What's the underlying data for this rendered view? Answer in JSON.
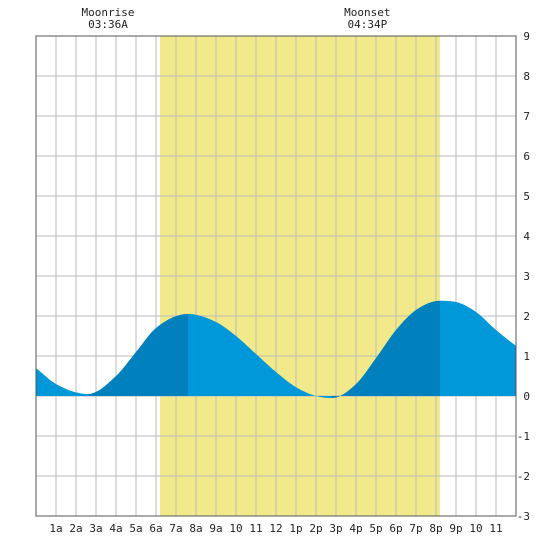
{
  "chart_data": {
    "type": "area",
    "annotations": [
      {
        "label": "Moonrise",
        "time_label": "03:36A",
        "hour": 3.6
      },
      {
        "label": "Moonset",
        "time_label": "04:34P",
        "hour": 16.567
      }
    ],
    "daylight": {
      "start_hour": 6.2,
      "end_hour": 20.2,
      "color": "#f2ea8a"
    },
    "x_range": [
      0,
      24
    ],
    "ylim": [
      -3,
      9
    ],
    "yticks": [
      -3,
      -2,
      -1,
      0,
      1,
      2,
      3,
      4,
      5,
      6,
      7,
      8,
      9
    ],
    "xticks": [
      {
        "hour": 1,
        "label": "1a"
      },
      {
        "hour": 2,
        "label": "2a"
      },
      {
        "hour": 3,
        "label": "3a"
      },
      {
        "hour": 4,
        "label": "4a"
      },
      {
        "hour": 5,
        "label": "5a"
      },
      {
        "hour": 6,
        "label": "6a"
      },
      {
        "hour": 7,
        "label": "7a"
      },
      {
        "hour": 8,
        "label": "8a"
      },
      {
        "hour": 9,
        "label": "9a"
      },
      {
        "hour": 10,
        "label": "10"
      },
      {
        "hour": 11,
        "label": "11"
      },
      {
        "hour": 12,
        "label": "12"
      },
      {
        "hour": 13,
        "label": "1p"
      },
      {
        "hour": 14,
        "label": "2p"
      },
      {
        "hour": 15,
        "label": "3p"
      },
      {
        "hour": 16,
        "label": "4p"
      },
      {
        "hour": 17,
        "label": "5p"
      },
      {
        "hour": 18,
        "label": "6p"
      },
      {
        "hour": 19,
        "label": "7p"
      },
      {
        "hour": 20,
        "label": "8p"
      },
      {
        "hour": 21,
        "label": "9p"
      },
      {
        "hour": 22,
        "label": "10"
      },
      {
        "hour": 23,
        "label": "11"
      }
    ],
    "series": [
      {
        "x": [
          0,
          1,
          2.6,
          4,
          5,
          6,
          7.6,
          9,
          10,
          11,
          12,
          13,
          14,
          14.8,
          16,
          17,
          18,
          19,
          20.2,
          21,
          22,
          23,
          24
        ],
        "y": [
          0.7,
          0.3,
          0.05,
          0.5,
          1.1,
          1.7,
          2.05,
          1.85,
          1.5,
          1.05,
          0.6,
          0.22,
          0.0,
          -0.05,
          0.3,
          0.95,
          1.65,
          2.15,
          2.38,
          2.35,
          2.1,
          1.65,
          1.25
        ]
      }
    ],
    "tide_turns": [
      {
        "hour": 2.6,
        "height": 0.05,
        "kind": "low"
      },
      {
        "hour": 7.6,
        "height": 2.05,
        "kind": "high"
      },
      {
        "hour": 14.8,
        "height": -0.05,
        "kind": "low"
      },
      {
        "hour": 20.2,
        "height": 2.38,
        "kind": "high"
      }
    ],
    "colors": {
      "rising": "#0080bc",
      "falling": "#0098d8",
      "grid": "#bbbbbb",
      "axis": "#555555"
    },
    "grid": true
  }
}
